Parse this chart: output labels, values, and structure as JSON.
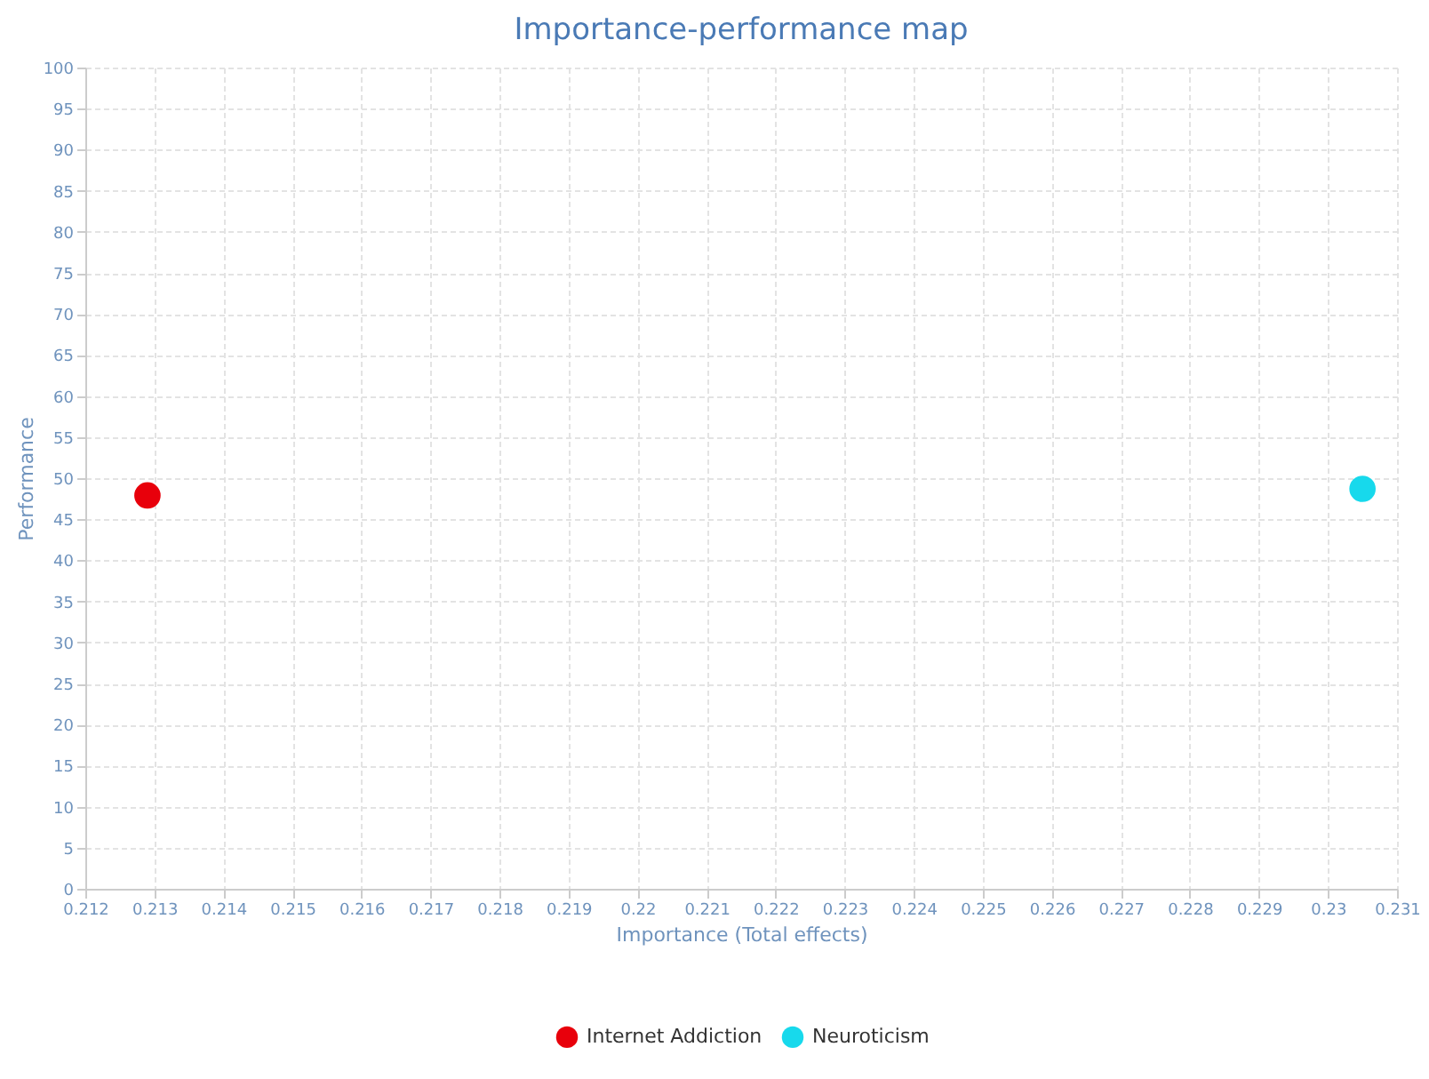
{
  "chart_data": {
    "type": "scatter",
    "title": "Importance-performance map",
    "xlabel": "Importance (Total effects)",
    "ylabel": "Performance",
    "series": [
      {
        "name": "Internet Addiction",
        "color": "#e8000b",
        "x": [
          0.2129
        ],
        "values": [
          47.9
        ]
      },
      {
        "name": "Neuroticism",
        "color": "#17d9ec",
        "x": [
          0.2305
        ],
        "values": [
          48.7
        ]
      }
    ],
    "xlim": [
      0.212,
      0.231
    ],
    "xticks": [
      0.212,
      0.213,
      0.214,
      0.215,
      0.216,
      0.217,
      0.218,
      0.219,
      0.22,
      0.221,
      0.222,
      0.223,
      0.224,
      0.225,
      0.226,
      0.227,
      0.228,
      0.229,
      0.23,
      0.231
    ],
    "ylim": [
      0,
      100
    ],
    "yticks": [
      0,
      5,
      10,
      15,
      20,
      25,
      30,
      35,
      40,
      45,
      50,
      55,
      60,
      65,
      70,
      75,
      80,
      85,
      90,
      95,
      100
    ],
    "grid": true,
    "legend": "bottom",
    "marker": "circle"
  }
}
